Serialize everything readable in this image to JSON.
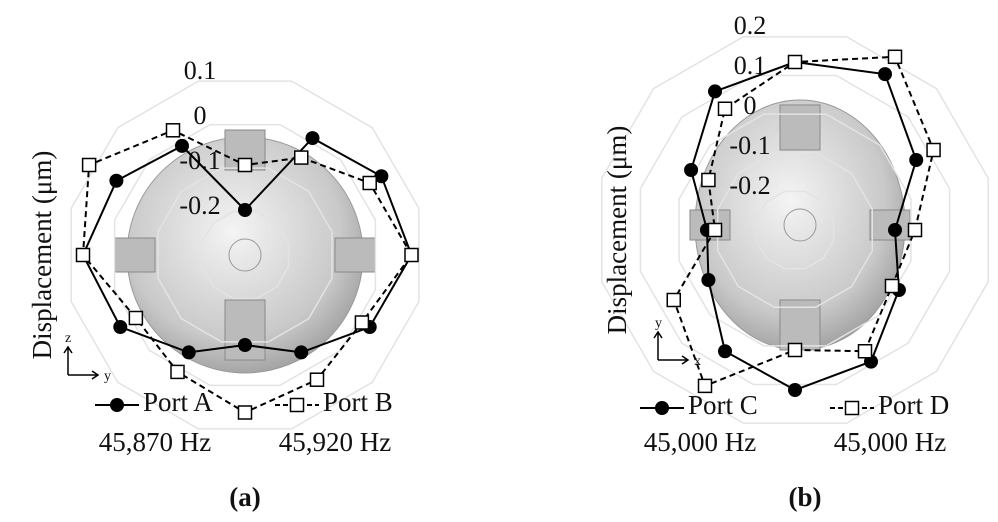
{
  "chart_data": [
    {
      "type": "polar",
      "ylabel": "Displacement (μm)",
      "panel_label": "(a)",
      "axis_up": "z",
      "axis_right": "y",
      "theta": [
        0,
        30,
        60,
        90,
        120,
        150,
        180,
        210,
        240,
        270,
        300,
        330
      ],
      "ylim": [
        -0.3,
        0.1
      ],
      "yticks": [
        0.1,
        0,
        -0.1,
        -0.2
      ],
      "grid": true,
      "series": [
        {
          "name": "Port A",
          "frequency": "45,870 Hz",
          "color": "#000000",
          "marker": "circle",
          "dashed": false,
          "values": [
            0.07,
            0.05,
            0.0,
            -0.2,
            -0.02,
            0.03,
            0.06,
            0.02,
            -0.05,
            -0.1,
            -0.05,
            0.02
          ]
        },
        {
          "name": "Port B",
          "frequency": "45,920 Hz",
          "color": "#000000",
          "marker": "square",
          "dashed": true,
          "values": [
            0.07,
            0.02,
            -0.05,
            -0.1,
            0.02,
            0.1,
            0.06,
            -0.02,
            0.0,
            0.05,
            0.02,
            0.0
          ]
        }
      ]
    },
    {
      "type": "polar",
      "ylabel": "Displacement (μm)",
      "panel_label": "(b)",
      "axis_up": "y",
      "axis_right": "x",
      "theta": [
        0,
        30,
        60,
        90,
        120,
        150,
        180,
        210,
        240,
        270,
        300,
        330
      ],
      "ylim": [
        -0.3,
        0.2
      ],
      "yticks": [
        0.2,
        0.1,
        0,
        -0.1,
        -0.2
      ],
      "grid": true,
      "series": [
        {
          "name": "Port C",
          "frequency": "45,000 Hz",
          "color": "#000000",
          "marker": "circle",
          "dashed": false,
          "values": [
            -0.05,
            0.05,
            0.15,
            0.12,
            0.1,
            0.0,
            -0.08,
            -0.05,
            0.05,
            0.1,
            0.08,
            0.0
          ]
        },
        {
          "name": "Port D",
          "frequency": "45,000 Hz",
          "color": "#000000",
          "marker": "square",
          "dashed": true,
          "values": [
            0.0,
            0.1,
            0.2,
            0.12,
            0.05,
            -0.05,
            -0.1,
            0.05,
            0.15,
            0.0,
            0.05,
            -0.02
          ]
        }
      ]
    }
  ]
}
